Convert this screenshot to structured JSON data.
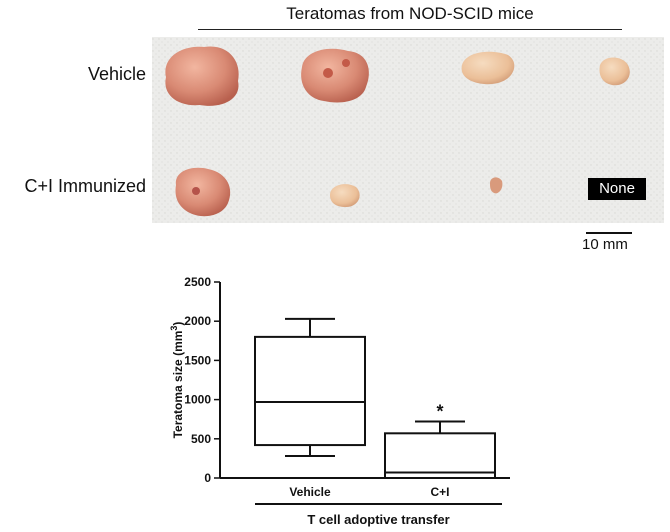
{
  "photo": {
    "title": "Teratomas from NOD-SCID mice",
    "row_labels": [
      "Vehicle",
      "C+I Immunized"
    ],
    "none_label": "None",
    "scale_label": "10 mm"
  },
  "chart_data": {
    "type": "box",
    "ylabel": "Teratoma size (mm",
    "ylabel_sup": "3",
    "ylabel_end": ")",
    "xlabel": "T cell adoptive transfer",
    "ylim": [
      0,
      2500
    ],
    "yticks": [
      "0",
      "500",
      "1000",
      "1500",
      "2000",
      "2500"
    ],
    "categories": [
      "Vehicle",
      "C+I"
    ],
    "boxes": [
      {
        "min": 280,
        "q1": 420,
        "median": 970,
        "q3": 1800,
        "max": 2030
      },
      {
        "min": 0,
        "q1": 0,
        "median": 70,
        "q3": 570,
        "max": 720
      }
    ],
    "annotations": [
      "",
      "*"
    ],
    "colors": {
      "stroke": "#111111",
      "tissue": "#d98f7a",
      "tissue_light": "#ecc7a8",
      "background": "#eeeeea"
    }
  }
}
